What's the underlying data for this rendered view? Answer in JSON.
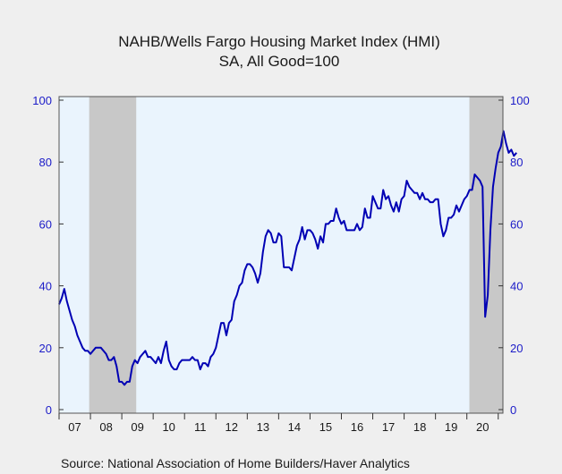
{
  "chart_data": {
    "type": "line",
    "title": "NAHB/Wells Fargo Housing Market Index (HMI)",
    "subtitle": "SA, All Good=100",
    "source": "Source:  National Association of Home Builders/Haver Analytics",
    "ylim": [
      0,
      100
    ],
    "y_ticks": [
      "0",
      "20",
      "40",
      "60",
      "80",
      "100"
    ],
    "y_ticks_right": [
      "0",
      "20",
      "40",
      "60",
      "80",
      "100"
    ],
    "x_range": [
      2007.0,
      2021.15
    ],
    "x_tick_labels": [
      {
        "label": "07",
        "year": 2007
      },
      {
        "label": "08",
        "year": 2008
      },
      {
        "label": "09",
        "year": 2009
      },
      {
        "label": "10",
        "year": 2010
      },
      {
        "label": "11",
        "year": 2011
      },
      {
        "label": "12",
        "year": 2012
      },
      {
        "label": "13",
        "year": 2013
      },
      {
        "label": "14",
        "year": 2014
      },
      {
        "label": "15",
        "year": 2015
      },
      {
        "label": "16",
        "year": 2016
      },
      {
        "label": "17",
        "year": 2017
      },
      {
        "label": "18",
        "year": 2018
      },
      {
        "label": "19",
        "year": 2019
      },
      {
        "label": "20",
        "year": 2020
      }
    ],
    "recessions": [
      {
        "start": 2007.96,
        "end": 2009.46
      },
      {
        "start": 2020.08,
        "end": 2021.15
      }
    ],
    "grid": false,
    "colors": {
      "line": "#0000b4",
      "recession": "#c8c8c8",
      "plot_background": "#eaf4fd",
      "page_background": "#efefef",
      "axis_labels": "#1b1bc8"
    },
    "series": [
      {
        "start": 2007.0,
        "step": 0.0833333,
        "values": [
          34,
          36,
          39,
          35,
          32,
          29,
          27,
          24,
          22,
          20,
          19,
          19,
          18,
          19,
          20,
          20,
          20,
          19,
          18,
          16,
          16,
          17,
          14,
          9,
          9,
          8,
          9,
          9,
          14,
          16,
          15,
          17,
          18,
          19,
          17,
          17,
          16,
          15,
          17,
          15,
          19,
          22,
          16,
          14,
          13,
          13,
          15,
          16,
          16,
          16,
          16,
          17,
          16,
          16,
          13,
          15,
          15,
          14,
          17,
          18,
          20,
          24,
          28,
          28,
          24,
          28,
          29,
          35,
          37,
          40,
          41,
          45,
          47,
          47,
          46,
          44,
          41,
          44,
          51,
          56,
          58,
          57,
          54,
          54,
          57,
          56,
          46,
          46,
          46,
          45,
          49,
          53,
          55,
          59,
          55,
          58,
          58,
          57,
          55,
          52,
          56,
          54,
          60,
          60,
          61,
          61,
          65,
          62,
          60,
          61,
          58,
          58,
          58,
          58,
          60,
          58,
          59,
          65,
          62,
          62,
          69,
          67,
          65,
          65,
          71,
          68,
          69,
          66,
          64,
          67,
          64,
          68,
          69,
          74,
          72,
          71,
          70,
          70,
          68,
          70,
          68,
          68,
          67,
          67,
          68,
          68,
          60,
          56,
          58,
          62,
          62,
          63,
          66,
          64,
          66,
          68,
          69,
          71,
          71,
          76,
          75,
          74,
          72,
          30,
          37,
          58,
          72,
          78,
          83,
          85,
          90,
          86,
          83,
          84,
          82,
          83
        ]
      }
    ]
  }
}
